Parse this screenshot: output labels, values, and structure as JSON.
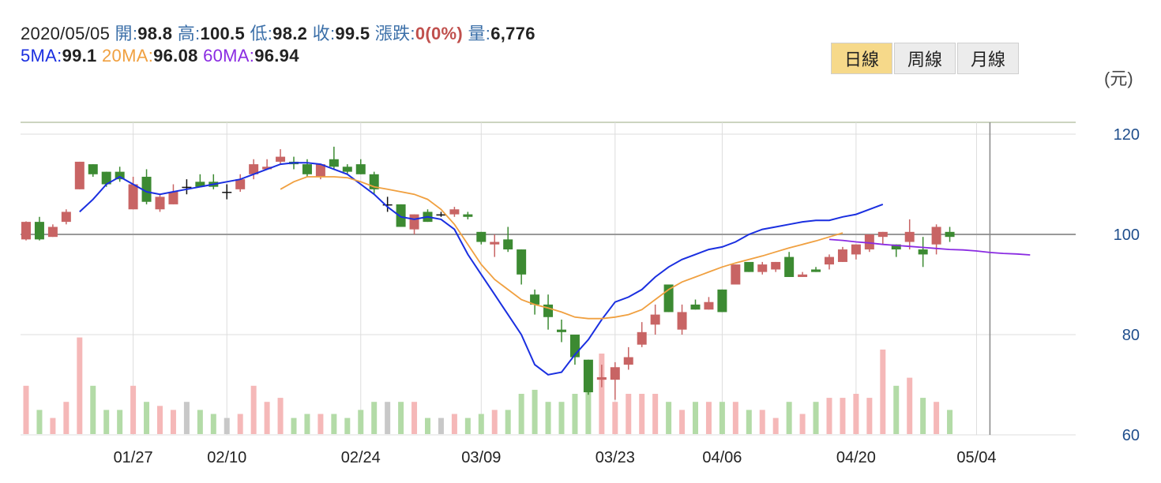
{
  "info": {
    "date": "2020/05/05",
    "open_label": "開",
    "open": "98.8",
    "high_label": "高",
    "high": "100.5",
    "low_label": "低",
    "low": "98.2",
    "close_label": "收",
    "close": "99.5",
    "change_label": "漲跌",
    "change": "0(0%)",
    "volume_label": "量",
    "volume": "6,776",
    "ma5_label": "5MA",
    "ma5": "99.1",
    "ma20_label": "20MA",
    "ma20": "96.08",
    "ma60_label": "60MA",
    "ma60": "96.94",
    "sep": ":"
  },
  "tabs": [
    {
      "label": "日線",
      "active": true
    },
    {
      "label": "周線",
      "active": false
    },
    {
      "label": "月線",
      "active": false
    }
  ],
  "unit": "(元)",
  "colors": {
    "up": "#c86464",
    "down": "#3c8a32",
    "vol_up": "#f5b8b8",
    "vol_down": "#b3dba7",
    "vol_flat": "#c8c8c8",
    "ma5": "#1a2fe0",
    "ma20": "#f0a040",
    "ma60": "#8a2be2",
    "grid": "#dddddd",
    "ref": "#999999",
    "top_border": "#9aa880"
  },
  "chart_data": {
    "type": "candlestick",
    "y_ticks": [
      "120",
      "100",
      "80",
      "60"
    ],
    "ylim": [
      60,
      122
    ],
    "reference_value": 100,
    "x_ticks": [
      {
        "label": "01/27",
        "index": 8
      },
      {
        "label": "02/10",
        "index": 15
      },
      {
        "label": "02/24",
        "index": 25
      },
      {
        "label": "03/09",
        "index": 34
      },
      {
        "label": "03/23",
        "index": 44
      },
      {
        "label": "04/06",
        "index": 52
      },
      {
        "label": "04/20",
        "index": 62
      },
      {
        "label": "05/04",
        "index": 71
      }
    ],
    "selected_index": 72,
    "series": [
      {
        "name": "5MA",
        "values": [
          null,
          null,
          null,
          null,
          104.5,
          107,
          110,
          111.5,
          110,
          108.5,
          108,
          108.5,
          109,
          109.5,
          110,
          110.5,
          111,
          112,
          113,
          114,
          114.3,
          114.3,
          114,
          113,
          112,
          110,
          108,
          105.5,
          103.5,
          103,
          103.5,
          103,
          101,
          96,
          92,
          88,
          84,
          80,
          74,
          72,
          72.5,
          76,
          79,
          83,
          86.5,
          87.5,
          89,
          91.5,
          93.5,
          95,
          96,
          97,
          97.5,
          98.5,
          100,
          101,
          101.5,
          102,
          102.5,
          102.8,
          102.8,
          103.5,
          104,
          105,
          106
        ]
      },
      {
        "name": "20MA",
        "values": [
          null,
          null,
          null,
          null,
          null,
          null,
          null,
          null,
          null,
          null,
          null,
          null,
          null,
          null,
          null,
          null,
          null,
          null,
          null,
          109,
          110.5,
          111.5,
          111.5,
          111.5,
          111.3,
          110.5,
          109.5,
          109,
          108.5,
          108,
          107,
          105,
          102,
          98,
          94,
          91,
          89,
          87,
          86,
          85.3,
          84.5,
          83.5,
          83.2,
          83.2,
          83.5,
          84,
          85,
          87,
          89,
          90.5,
          91.5,
          92.5,
          93.5,
          94.3,
          95,
          95.7,
          96.5,
          97.3,
          98,
          98.7,
          99.5,
          100.3
        ]
      },
      {
        "name": "60MA",
        "values": [
          null,
          null,
          null,
          null,
          null,
          null,
          null,
          null,
          null,
          null,
          null,
          null,
          null,
          null,
          null,
          null,
          null,
          null,
          null,
          null,
          null,
          null,
          null,
          null,
          null,
          null,
          null,
          null,
          null,
          null,
          null,
          null,
          null,
          null,
          null,
          null,
          null,
          null,
          null,
          null,
          null,
          null,
          null,
          null,
          null,
          null,
          null,
          null,
          null,
          null,
          null,
          null,
          null,
          null,
          null,
          null,
          null,
          null,
          null,
          null,
          99,
          98.8,
          98.5,
          98.3,
          98,
          97.8,
          97.6,
          97.4,
          97.2,
          97,
          96.9,
          96.7,
          96.4,
          96.2,
          96.1,
          95.9
        ]
      }
    ],
    "candles": [
      [
        99,
        102.5,
        102.6,
        98.8,
        6
      ],
      [
        102.5,
        99,
        103.5,
        98.8,
        3
      ],
      [
        99.5,
        101.5,
        102,
        99.5,
        2
      ],
      [
        102.5,
        104.5,
        105,
        102,
        4
      ],
      [
        109,
        114.5,
        114.5,
        109,
        12
      ],
      [
        114,
        112,
        114,
        111.5,
        6
      ],
      [
        112.5,
        110,
        112.5,
        109.5,
        3
      ],
      [
        112.5,
        111,
        113.5,
        110.5,
        3
      ],
      [
        105,
        110,
        111.5,
        105,
        6
      ],
      [
        111.5,
        106.5,
        113,
        106,
        4
      ],
      [
        105,
        107.5,
        108,
        104.5,
        3.5
      ],
      [
        106,
        108.5,
        110,
        106,
        3
      ],
      [
        109.5,
        109.5,
        111,
        108,
        4
      ],
      [
        110.5,
        109.5,
        112,
        109.5,
        3
      ],
      [
        110.5,
        109.5,
        112,
        109,
        2.5
      ],
      [
        108.5,
        108.5,
        110,
        107,
        2
      ],
      [
        109,
        111,
        112,
        108.5,
        2.5
      ],
      [
        112,
        114,
        115,
        111,
        6
      ],
      [
        113,
        113.5,
        115,
        113,
        4
      ],
      [
        114.5,
        115.5,
        117,
        114,
        4.5
      ],
      [
        114.5,
        114,
        115.5,
        113,
        2
      ],
      [
        114,
        112,
        115,
        111.5,
        2.5
      ],
      [
        111.5,
        114,
        114,
        111,
        2.5
      ],
      [
        115,
        113.5,
        117.5,
        113,
        2.5
      ],
      [
        113.5,
        112.5,
        114,
        112,
        2
      ],
      [
        114,
        112,
        115,
        112,
        3
      ],
      [
        112,
        109,
        112.5,
        108,
        4
      ],
      [
        106,
        106,
        107.5,
        104.5,
        4
      ],
      [
        106,
        101.5,
        106,
        101.5,
        4
      ],
      [
        101,
        104,
        104,
        100,
        4
      ],
      [
        104.5,
        102.5,
        105,
        102.5,
        2
      ],
      [
        104,
        104,
        104.5,
        103.5,
        2
      ],
      [
        104,
        105,
        105.5,
        103.5,
        2.5
      ],
      [
        104,
        103.5,
        104.5,
        103,
        2
      ],
      [
        100.5,
        98.5,
        100.5,
        98,
        2.5
      ],
      [
        98,
        98.5,
        100,
        95.5,
        3
      ],
      [
        99,
        97,
        101.5,
        96.5,
        3
      ],
      [
        97,
        92,
        97,
        90,
        5
      ],
      [
        88,
        86,
        89,
        84,
        5.5
      ],
      [
        86,
        83.5,
        88,
        81,
        4
      ],
      [
        81,
        80.5,
        83,
        78.5,
        4
      ],
      [
        80,
        75.5,
        80,
        74,
        5
      ],
      [
        75,
        68.5,
        75,
        68,
        7.5
      ],
      [
        71,
        71.5,
        74,
        69.5,
        10
      ],
      [
        71,
        73.5,
        74.5,
        67,
        4
      ],
      [
        74,
        75.5,
        77.5,
        73,
        5
      ],
      [
        78,
        80.5,
        82.5,
        77.5,
        5
      ],
      [
        82,
        84,
        86,
        80,
        5
      ],
      [
        90,
        84.5,
        90,
        84.5,
        4
      ],
      [
        81,
        84.5,
        86,
        80,
        3
      ],
      [
        86,
        85,
        87,
        85,
        4
      ],
      [
        85,
        86.5,
        87.5,
        85,
        4
      ],
      [
        89,
        84.5,
        89,
        84.5,
        4
      ],
      [
        90,
        94,
        94,
        90,
        4
      ],
      [
        94.5,
        92.5,
        94,
        92.5,
        3
      ],
      [
        92.5,
        94,
        94.5,
        92,
        3
      ],
      [
        93,
        94.5,
        94.5,
        92.5,
        2
      ],
      [
        95.5,
        91.5,
        96.5,
        91.5,
        4
      ],
      [
        91.5,
        92,
        92.5,
        91.5,
        2.5
      ],
      [
        93,
        92.5,
        93.5,
        92.5,
        4
      ],
      [
        94,
        95.5,
        96,
        93,
        4.5
      ],
      [
        94.5,
        97,
        97.5,
        94.5,
        4.5
      ],
      [
        96,
        98,
        98,
        95,
        5
      ],
      [
        97,
        100,
        100,
        96.5,
        4.5
      ],
      [
        99.5,
        100.5,
        100.5,
        98,
        10.5
      ],
      [
        98,
        97,
        98,
        95.5,
        6
      ],
      [
        98.5,
        100.5,
        103,
        97,
        7
      ],
      [
        97,
        96,
        99.5,
        93.5,
        4.5
      ],
      [
        98,
        101.5,
        102,
        96,
        4
      ],
      [
        100.5,
        99.5,
        101.5,
        98.5,
        3
      ]
    ]
  }
}
